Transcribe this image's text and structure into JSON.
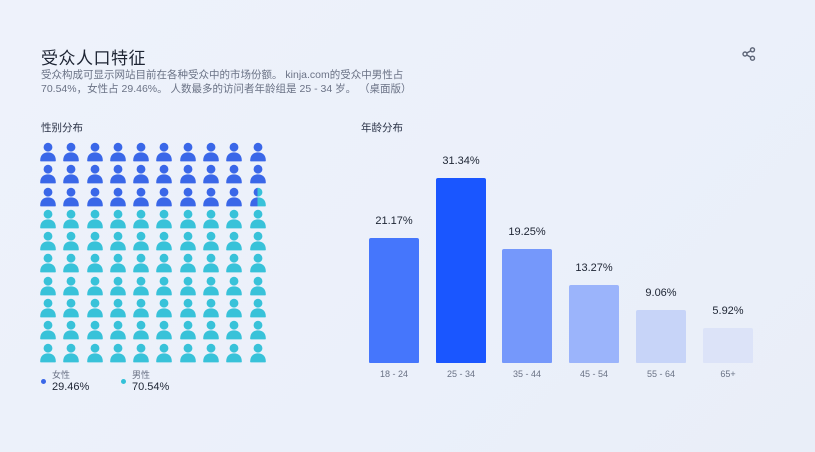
{
  "header": {
    "title": "受众人口特征",
    "description": "受众构成可显示网站目前在各种受众中的市场份额。 kinja.com的受众中男性占70.54%，女性占 29.46%。 人数最多的访问者年龄组是 25 - 34 岁。 （桌面版）",
    "share_icon": "share-icon"
  },
  "gender": {
    "label": "性别分布",
    "icon": "person-icon",
    "total_icons": 100,
    "female_share": 29.46,
    "male_share": 70.54,
    "legend": [
      {
        "name": "女性",
        "value": "29.46%",
        "color": "#3a67e8"
      },
      {
        "name": "男性",
        "value": "70.54%",
        "color": "#33c1d8"
      }
    ]
  },
  "age": {
    "label": "年龄分布"
  },
  "colors": {
    "female": "#3a67e8",
    "male": "#38c2d9"
  },
  "chart_data": [
    {
      "type": "pictogram",
      "title": "性别分布",
      "categories": [
        "女性",
        "男性"
      ],
      "values": [
        29.46,
        70.54
      ],
      "unit": "%",
      "legend_position": "bottom"
    },
    {
      "type": "bar",
      "title": "年龄分布",
      "categories": [
        "18 - 24",
        "25 - 34",
        "35 - 44",
        "45 - 54",
        "55 - 64",
        "65+"
      ],
      "values": [
        21.17,
        31.34,
        19.25,
        13.27,
        9.06,
        5.92
      ],
      "labels": [
        "21.17%",
        "31.34%",
        "19.25%",
        "13.27%",
        "9.06%",
        "5.92%"
      ],
      "colors": [
        "#4576fc",
        "#1a56ff",
        "#7598fb",
        "#9bb4fb",
        "#c7d4f8",
        "#dce3f8"
      ],
      "xlabel": "",
      "ylabel": "",
      "grid": false
    }
  ]
}
